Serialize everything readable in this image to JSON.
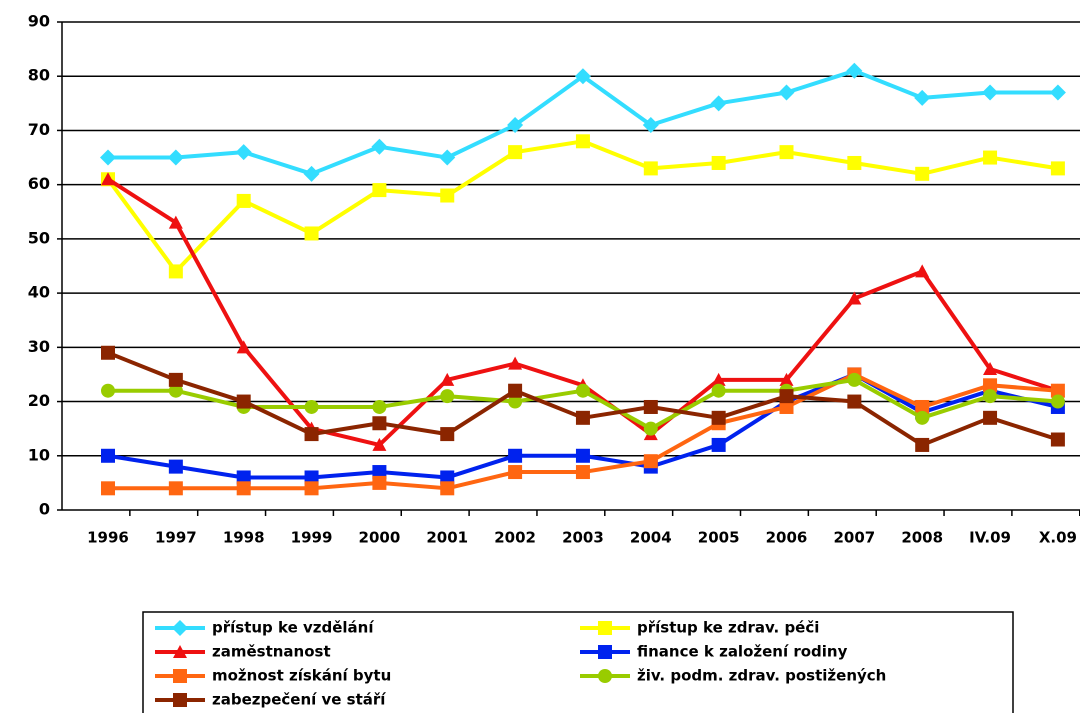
{
  "chart_data": {
    "type": "line",
    "categories": [
      "1996",
      "1997",
      "1998",
      "1999",
      "2000",
      "2001",
      "2002",
      "2003",
      "2004",
      "2005",
      "2006",
      "2007",
      "2008",
      "IV.09",
      "X.09"
    ],
    "series": [
      {
        "name": "přístup ke vzdělání",
        "color": "#33ddff",
        "marker": "diamond",
        "values": [
          65,
          65,
          66,
          62,
          67,
          65,
          71,
          80,
          71,
          75,
          77,
          81,
          76,
          77,
          77
        ]
      },
      {
        "name": "přístup ke zdrav. péči",
        "color": "#ffff00",
        "marker": "square",
        "values": [
          61,
          44,
          57,
          51,
          59,
          58,
          66,
          68,
          63,
          64,
          66,
          64,
          62,
          65,
          63
        ]
      },
      {
        "name": "zaměstnanost",
        "color": "#ee1111",
        "marker": "triangle",
        "values": [
          61,
          53,
          30,
          15,
          12,
          24,
          27,
          23,
          14,
          24,
          24,
          39,
          44,
          26,
          22
        ]
      },
      {
        "name": "finance k založení rodiny",
        "color": "#0022ee",
        "marker": "square",
        "values": [
          10,
          8,
          6,
          6,
          7,
          6,
          10,
          10,
          8,
          12,
          20,
          25,
          18,
          22,
          19
        ]
      },
      {
        "name": "možnost získání bytu",
        "color": "#ff6611",
        "marker": "square",
        "values": [
          4,
          4,
          4,
          4,
          5,
          4,
          7,
          7,
          9,
          16,
          19,
          25,
          19,
          23,
          22
        ]
      },
      {
        "name": "živ. podm. zdrav. postižených",
        "color": "#99cc00",
        "marker": "circle",
        "values": [
          22,
          22,
          19,
          19,
          19,
          21,
          20,
          22,
          15,
          22,
          22,
          24,
          17,
          21,
          20
        ]
      },
      {
        "name": "zabezpečení ve stáří",
        "color": "#8b2500",
        "marker": "square",
        "values": [
          29,
          24,
          20,
          14,
          16,
          14,
          22,
          17,
          19,
          17,
          21,
          20,
          12,
          17,
          13
        ]
      }
    ],
    "ylim": [
      0,
      90
    ],
    "yticks": [
      0,
      10,
      20,
      30,
      40,
      50,
      60,
      70,
      80,
      90
    ],
    "grid": true,
    "legend": "bottom"
  }
}
